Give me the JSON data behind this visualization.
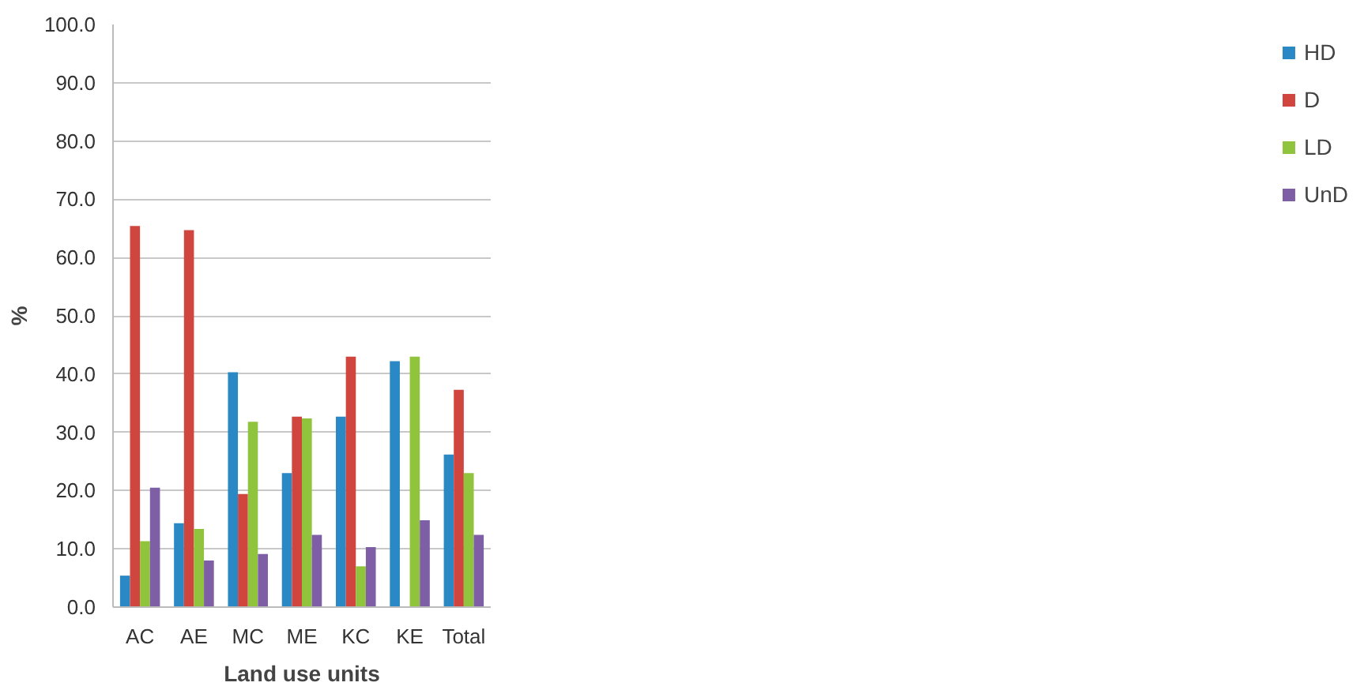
{
  "chart_data": {
    "type": "bar",
    "xlabel": "Land use units",
    "ylabel": "%",
    "categories": [
      "AC",
      "AE",
      "MC",
      "ME",
      "KC",
      "KE",
      "Total"
    ],
    "series": [
      {
        "name": "HD",
        "color": "#2a88c4",
        "values": [
          5.4,
          14.4,
          40.3,
          23.0,
          32.7,
          42.2,
          26.2
        ]
      },
      {
        "name": "D",
        "color": "#d0463f",
        "values": [
          65.4,
          64.7,
          19.4,
          32.7,
          43.0,
          0,
          37.3
        ]
      },
      {
        "name": "LD",
        "color": "#8fc43c",
        "values": [
          11.3,
          13.4,
          31.8,
          32.4,
          7.0,
          43.0,
          23.0
        ]
      },
      {
        "name": "UnD",
        "color": "#7e5fa6",
        "values": [
          20.5,
          8.0,
          9.1,
          12.4,
          10.3,
          14.9,
          12.4
        ]
      }
    ],
    "ylim": [
      0,
      100
    ],
    "yticks": [
      {
        "value": 0,
        "label": "0.0"
      },
      {
        "value": 10,
        "label": "10.0"
      },
      {
        "value": 20,
        "label": "20.0"
      },
      {
        "value": 30,
        "label": "30.0"
      },
      {
        "value": 40,
        "label": "40.0"
      },
      {
        "value": 50,
        "label": "50.0"
      },
      {
        "value": 60,
        "label": "60.0"
      },
      {
        "value": 70,
        "label": "70.0"
      },
      {
        "value": 80,
        "label": "80.0"
      },
      {
        "value": 90,
        "label": "90.0"
      },
      {
        "value": 100,
        "label": "100.0"
      }
    ],
    "grid": "y",
    "legend": "right"
  }
}
